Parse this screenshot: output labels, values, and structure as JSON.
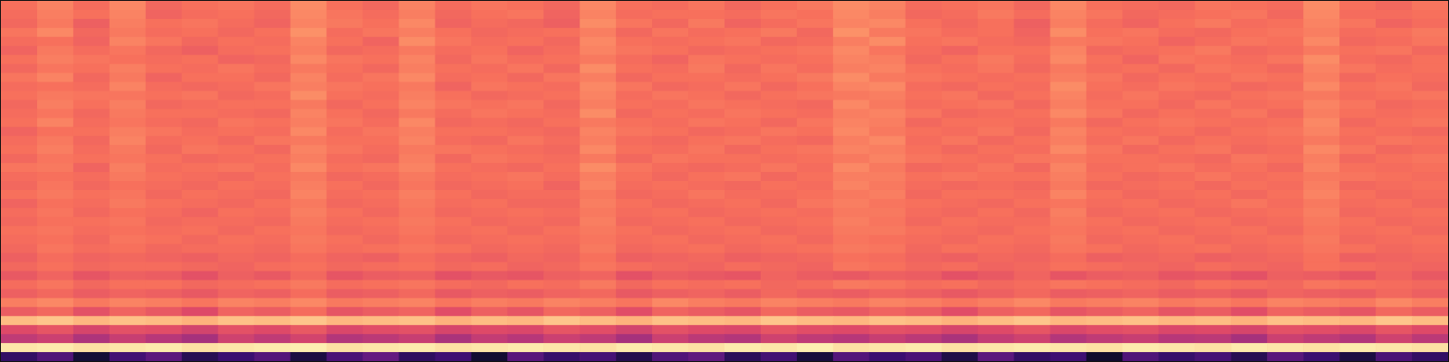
{
  "chart_data": {
    "type": "heatmap",
    "tick_labels": false,
    "zlim": [
      0,
      100
    ],
    "cells": [
      [
        70,
        74,
        69,
        75,
        68,
        70,
        71,
        69,
        76,
        70,
        68,
        74,
        69,
        71,
        70,
        68,
        75,
        70,
        69,
        71,
        68,
        70,
        72,
        76,
        74,
        69,
        70,
        71,
        68,
        75,
        70,
        69,
        68,
        71,
        70,
        69,
        76,
        70,
        68,
        71
      ],
      [
        69,
        73,
        70,
        74,
        67,
        69,
        70,
        68,
        75,
        71,
        69,
        73,
        68,
        70,
        71,
        67,
        74,
        69,
        70,
        70,
        69,
        71,
        70,
        75,
        73,
        68,
        69,
        72,
        69,
        74,
        71,
        68,
        69,
        70,
        71,
        68,
        75,
        69,
        69,
        70
      ],
      [
        68,
        72,
        66,
        73,
        70,
        71,
        69,
        67,
        74,
        72,
        70,
        75,
        67,
        69,
        68,
        66,
        76,
        71,
        68,
        72,
        67,
        69,
        71,
        74,
        75,
        70,
        68,
        70,
        66,
        73,
        69,
        67,
        70,
        72,
        69,
        70,
        74,
        71,
        67,
        69
      ],
      [
        71,
        75,
        68,
        72,
        69,
        70,
        68,
        70,
        77,
        69,
        71,
        73,
        70,
        68,
        69,
        70,
        73,
        68,
        71,
        69,
        70,
        72,
        68,
        77,
        72,
        71,
        69,
        70,
        67,
        76,
        70,
        71,
        69,
        68,
        70,
        71,
        73,
        69,
        70,
        72
      ],
      [
        69,
        70,
        67,
        74,
        71,
        68,
        70,
        69,
        74,
        70,
        67,
        76,
        71,
        69,
        70,
        68,
        75,
        70,
        69,
        70,
        71,
        68,
        69,
        73,
        76,
        70,
        71,
        69,
        68,
        72,
        71,
        70,
        67,
        69,
        71,
        70,
        75,
        68,
        69,
        71
      ],
      [
        67,
        72,
        69,
        71,
        68,
        66,
        69,
        70,
        73,
        68,
        69,
        72,
        69,
        70,
        67,
        69,
        74,
        71,
        70,
        68,
        69,
        70,
        71,
        75,
        71,
        69,
        67,
        70,
        70,
        74,
        68,
        69,
        70,
        72,
        68,
        69,
        72,
        70,
        71,
        68
      ],
      [
        70,
        73,
        71,
        70,
        69,
        70,
        67,
        68,
        75,
        71,
        70,
        74,
        68,
        71,
        69,
        70,
        72,
        69,
        67,
        71,
        70,
        69,
        70,
        74,
        73,
        68,
        70,
        72,
        69,
        75,
        70,
        67,
        71,
        70,
        69,
        71,
        76,
        69,
        68,
        70
      ],
      [
        68,
        71,
        70,
        73,
        70,
        69,
        71,
        69,
        72,
        70,
        68,
        73,
        70,
        69,
        71,
        68,
        76,
        70,
        69,
        72,
        68,
        71,
        69,
        73,
        74,
        70,
        69,
        71,
        68,
        72,
        69,
        70,
        68,
        71,
        70,
        68,
        74,
        71,
        69,
        70
      ],
      [
        71,
        74,
        68,
        72,
        67,
        70,
        70,
        68,
        74,
        69,
        71,
        75,
        69,
        70,
        68,
        71,
        73,
        68,
        70,
        70,
        69,
        70,
        72,
        76,
        72,
        71,
        70,
        69,
        70,
        73,
        71,
        68,
        70,
        69,
        71,
        70,
        73,
        68,
        70,
        69
      ],
      [
        69,
        70,
        69,
        74,
        69,
        68,
        69,
        71,
        73,
        71,
        70,
        72,
        67,
        71,
        70,
        69,
        75,
        71,
        68,
        69,
        71,
        68,
        70,
        74,
        75,
        69,
        68,
        70,
        69,
        76,
        70,
        69,
        71,
        70,
        68,
        69,
        75,
        70,
        71,
        68
      ],
      [
        70,
        72,
        71,
        71,
        70,
        71,
        68,
        69,
        76,
        70,
        69,
        73,
        70,
        68,
        69,
        70,
        74,
        69,
        71,
        70,
        68,
        70,
        71,
        72,
        73,
        70,
        71,
        68,
        70,
        74,
        69,
        71,
        69,
        68,
        70,
        71,
        72,
        69,
        70,
        71
      ],
      [
        68,
        73,
        70,
        73,
        68,
        69,
        70,
        70,
        72,
        68,
        70,
        74,
        71,
        70,
        71,
        68,
        73,
        70,
        69,
        71,
        70,
        69,
        68,
        75,
        72,
        69,
        70,
        71,
        68,
        73,
        70,
        70,
        68,
        71,
        69,
        70,
        74,
        71,
        68,
        69
      ],
      [
        69,
        71,
        68,
        72,
        70,
        70,
        69,
        68,
        74,
        70,
        68,
        72,
        69,
        71,
        70,
        69,
        76,
        68,
        70,
        69,
        71,
        70,
        69,
        73,
        74,
        71,
        68,
        69,
        70,
        75,
        71,
        68,
        70,
        69,
        71,
        68,
        73,
        70,
        69,
        70
      ],
      [
        70,
        74,
        69,
        71,
        69,
        68,
        71,
        70,
        73,
        71,
        69,
        75,
        68,
        69,
        68,
        70,
        72,
        70,
        69,
        71,
        70,
        68,
        71,
        74,
        73,
        68,
        70,
        70,
        69,
        72,
        68,
        70,
        71,
        70,
        69,
        70,
        75,
        68,
        70,
        71
      ],
      [
        67,
        70,
        70,
        73,
        71,
        69,
        70,
        69,
        75,
        69,
        71,
        73,
        70,
        70,
        69,
        68,
        74,
        71,
        70,
        68,
        69,
        71,
        70,
        75,
        72,
        70,
        69,
        71,
        68,
        74,
        70,
        69,
        70,
        68,
        70,
        71,
        74,
        70,
        69,
        68
      ],
      [
        69,
        72,
        68,
        74,
        69,
        70,
        68,
        71,
        72,
        70,
        70,
        74,
        69,
        68,
        71,
        69,
        73,
        69,
        68,
        70,
        71,
        69,
        68,
        73,
        75,
        69,
        71,
        68,
        70,
        73,
        69,
        71,
        68,
        70,
        69,
        70,
        72,
        69,
        71,
        70
      ],
      [
        70,
        73,
        69,
        72,
        68,
        71,
        70,
        68,
        74,
        71,
        69,
        72,
        71,
        70,
        69,
        68,
        75,
        70,
        69,
        71,
        68,
        70,
        71,
        74,
        73,
        70,
        68,
        70,
        69,
        75,
        71,
        68,
        70,
        71,
        68,
        69,
        75,
        71,
        68,
        69
      ],
      [
        68,
        71,
        70,
        71,
        70,
        68,
        69,
        70,
        73,
        69,
        68,
        73,
        68,
        71,
        70,
        69,
        72,
        68,
        71,
        70,
        70,
        69,
        70,
        72,
        74,
        71,
        70,
        69,
        71,
        72,
        70,
        70,
        69,
        68,
        71,
        70,
        73,
        68,
        70,
        71
      ],
      [
        71,
        72,
        67,
        73,
        69,
        70,
        71,
        69,
        75,
        70,
        71,
        74,
        70,
        69,
        68,
        70,
        76,
        71,
        69,
        68,
        69,
        71,
        69,
        75,
        72,
        68,
        69,
        71,
        68,
        74,
        69,
        70,
        71,
        69,
        70,
        68,
        74,
        70,
        69,
        70
      ],
      [
        69,
        70,
        69,
        72,
        70,
        69,
        68,
        70,
        72,
        68,
        69,
        72,
        69,
        70,
        71,
        69,
        73,
        70,
        68,
        70,
        71,
        68,
        70,
        73,
        73,
        70,
        71,
        70,
        70,
        73,
        70,
        68,
        69,
        71,
        69,
        70,
        72,
        71,
        70,
        69
      ],
      [
        68,
        71,
        68,
        70,
        69,
        68,
        70,
        69,
        73,
        70,
        68,
        71,
        68,
        69,
        70,
        67,
        74,
        69,
        70,
        69,
        68,
        70,
        69,
        74,
        72,
        69,
        68,
        69,
        68,
        72,
        68,
        69,
        70,
        68,
        70,
        69,
        73,
        68,
        69,
        70
      ],
      [
        70,
        72,
        70,
        71,
        68,
        70,
        69,
        68,
        74,
        69,
        70,
        73,
        70,
        68,
        69,
        69,
        72,
        68,
        69,
        71,
        69,
        69,
        70,
        72,
        73,
        68,
        70,
        70,
        69,
        74,
        70,
        68,
        69,
        70,
        68,
        70,
        74,
        70,
        68,
        69
      ],
      [
        67,
        70,
        69,
        72,
        70,
        69,
        68,
        70,
        72,
        68,
        69,
        72,
        69,
        70,
        68,
        68,
        73,
        70,
        68,
        69,
        70,
        68,
        71,
        73,
        71,
        70,
        69,
        68,
        70,
        71,
        69,
        70,
        68,
        69,
        71,
        69,
        72,
        69,
        70,
        68
      ],
      [
        69,
        71,
        68,
        70,
        69,
        67,
        70,
        69,
        73,
        70,
        68,
        71,
        68,
        69,
        70,
        69,
        72,
        69,
        70,
        68,
        69,
        70,
        69,
        72,
        72,
        69,
        68,
        70,
        68,
        73,
        68,
        69,
        70,
        68,
        69,
        70,
        73,
        68,
        69,
        70
      ],
      [
        68,
        70,
        70,
        71,
        68,
        69,
        69,
        68,
        72,
        69,
        70,
        72,
        70,
        68,
        69,
        68,
        73,
        68,
        69,
        70,
        68,
        69,
        70,
        73,
        71,
        68,
        70,
        69,
        69,
        72,
        70,
        68,
        69,
        70,
        68,
        69,
        72,
        70,
        68,
        69
      ],
      [
        70,
        71,
        69,
        70,
        69,
        70,
        68,
        70,
        71,
        68,
        69,
        71,
        69,
        70,
        68,
        70,
        72,
        70,
        68,
        69,
        70,
        68,
        69,
        72,
        72,
        70,
        69,
        68,
        70,
        71,
        69,
        70,
        68,
        69,
        70,
        68,
        71,
        69,
        70,
        68
      ],
      [
        69,
        70,
        68,
        71,
        70,
        68,
        70,
        69,
        72,
        70,
        68,
        70,
        68,
        69,
        70,
        69,
        71,
        69,
        70,
        68,
        69,
        70,
        68,
        71,
        70,
        69,
        68,
        70,
        69,
        72,
        68,
        69,
        70,
        68,
        69,
        70,
        72,
        68,
        69,
        70
      ],
      [
        68,
        71,
        69,
        70,
        68,
        69,
        69,
        68,
        71,
        69,
        70,
        71,
        70,
        68,
        69,
        68,
        72,
        68,
        69,
        70,
        68,
        69,
        70,
        72,
        71,
        68,
        70,
        69,
        68,
        71,
        70,
        68,
        69,
        70,
        68,
        69,
        71,
        70,
        68,
        69
      ],
      [
        66,
        69,
        67,
        68,
        67,
        66,
        68,
        67,
        69,
        67,
        66,
        69,
        67,
        66,
        68,
        67,
        70,
        66,
        67,
        68,
        66,
        67,
        68,
        70,
        69,
        67,
        66,
        68,
        67,
        69,
        66,
        67,
        68,
        66,
        67,
        68,
        70,
        66,
        67,
        68
      ],
      [
        68,
        70,
        68,
        69,
        69,
        68,
        67,
        69,
        70,
        68,
        69,
        70,
        68,
        69,
        67,
        68,
        71,
        69,
        68,
        67,
        69,
        68,
        67,
        71,
        70,
        68,
        69,
        67,
        68,
        70,
        69,
        68,
        67,
        69,
        68,
        67,
        70,
        69,
        68,
        67
      ],
      [
        64,
        67,
        63,
        66,
        65,
        62,
        66,
        64,
        68,
        63,
        65,
        66,
        62,
        64,
        63,
        66,
        67,
        62,
        65,
        64,
        63,
        67,
        65,
        64,
        66,
        65,
        62,
        64,
        67,
        63,
        65,
        66,
        63,
        64,
        62,
        66,
        65,
        63,
        67,
        64
      ],
      [
        69,
        71,
        68,
        70,
        70,
        68,
        69,
        70,
        72,
        69,
        70,
        71,
        69,
        68,
        70,
        69,
        72,
        68,
        70,
        69,
        70,
        68,
        69,
        72,
        71,
        69,
        70,
        68,
        69,
        71,
        70,
        69,
        68,
        70,
        69,
        68,
        71,
        70,
        69,
        68
      ],
      [
        66,
        68,
        65,
        67,
        66,
        64,
        67,
        66,
        69,
        65,
        66,
        68,
        64,
        66,
        65,
        67,
        68,
        64,
        66,
        67,
        65,
        68,
        66,
        65,
        67,
        66,
        64,
        66,
        68,
        65,
        66,
        67,
        65,
        66,
        64,
        67,
        66,
        65,
        68,
        66
      ],
      [
        73,
        75,
        72,
        74,
        73,
        71,
        74,
        73,
        75,
        72,
        73,
        74,
        71,
        73,
        72,
        74,
        73,
        71,
        75,
        73,
        72,
        74,
        73,
        72,
        74,
        73,
        71,
        73,
        75,
        72,
        73,
        74,
        72,
        73,
        71,
        74,
        73,
        72,
        75,
        73
      ],
      [
        65,
        68,
        62,
        67,
        64,
        60,
        67,
        65,
        69,
        63,
        65,
        67,
        61,
        66,
        63,
        68,
        66,
        61,
        67,
        65,
        63,
        68,
        65,
        64,
        67,
        65,
        61,
        66,
        68,
        63,
        65,
        67,
        63,
        65,
        61,
        67,
        65,
        63,
        68,
        65
      ],
      [
        86,
        88,
        85,
        87,
        86,
        84,
        87,
        86,
        88,
        85,
        86,
        87,
        84,
        86,
        85,
        88,
        86,
        84,
        87,
        86,
        85,
        88,
        86,
        85,
        87,
        86,
        84,
        86,
        88,
        85,
        86,
        87,
        85,
        86,
        84,
        87,
        86,
        85,
        88,
        86
      ],
      [
        60,
        63,
        58,
        62,
        61,
        57,
        62,
        60,
        64,
        59,
        61,
        62,
        58,
        60,
        59,
        63,
        61,
        57,
        62,
        60,
        59,
        63,
        61,
        60,
        62,
        61,
        58,
        60,
        63,
        59,
        61,
        62,
        59,
        60,
        58,
        62,
        61,
        59,
        63,
        60
      ],
      [
        52,
        55,
        48,
        54,
        50,
        46,
        56,
        52,
        57,
        49,
        51,
        54,
        47,
        53,
        50,
        55,
        52,
        46,
        55,
        51,
        49,
        56,
        52,
        50,
        54,
        51,
        47,
        53,
        56,
        49,
        52,
        54,
        50,
        51,
        46,
        55,
        52,
        49,
        56,
        51
      ],
      [
        95,
        96,
        94,
        95,
        96,
        94,
        95,
        96,
        97,
        94,
        95,
        96,
        94,
        95,
        96,
        95,
        94,
        96,
        95,
        94,
        96,
        95,
        97,
        94,
        95,
        96,
        94,
        95,
        96,
        95,
        94,
        96,
        95,
        94,
        96,
        95,
        94,
        96,
        95,
        94
      ],
      [
        18,
        25,
        10,
        22,
        28,
        15,
        20,
        26,
        12,
        24,
        30,
        17,
        21,
        9,
        27,
        19,
        23,
        14,
        25,
        29,
        16,
        22,
        11,
        26,
        20,
        24,
        13,
        28,
        18,
        21,
        8,
        25,
        19,
        23,
        15,
        27,
        20,
        12,
        24,
        18
      ]
    ]
  }
}
